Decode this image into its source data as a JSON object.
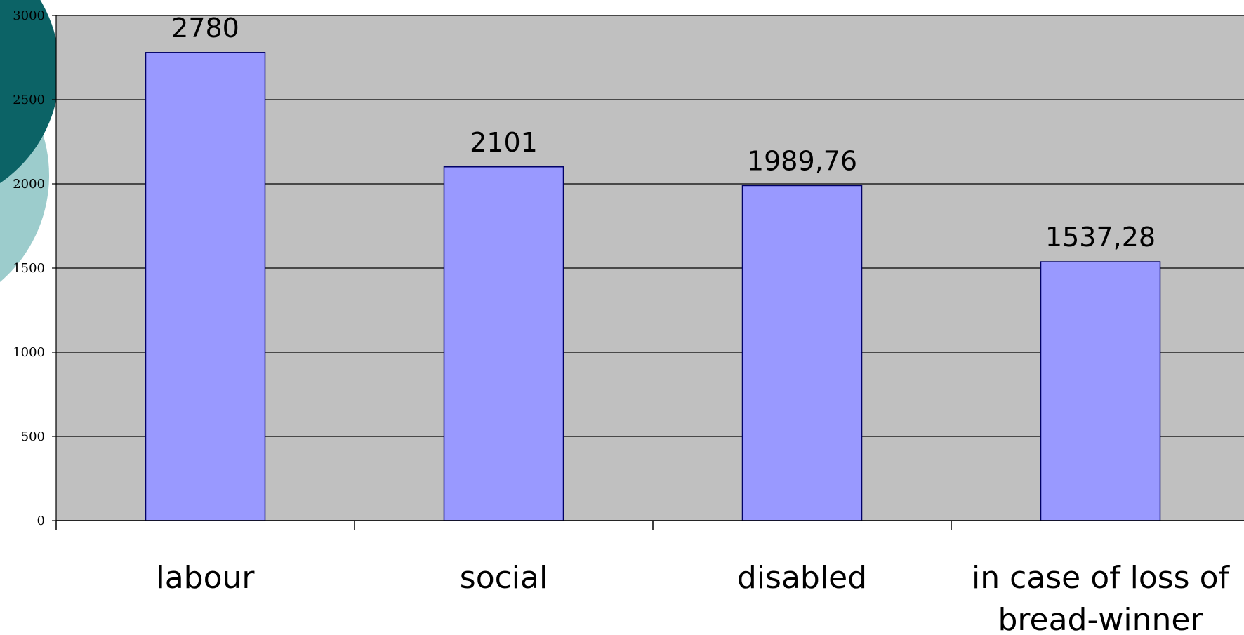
{
  "colors": {
    "plot_background": "#c0c0c0",
    "bar_fill": "#9999ff",
    "bar_stroke": "#000066",
    "gridline": "#000000",
    "decor_dark_teal": "#0c6366",
    "decor_light_teal": "#9ccccc"
  },
  "chart_data": {
    "type": "bar",
    "categories": [
      [
        "labour"
      ],
      [
        "social"
      ],
      [
        "disabled"
      ],
      [
        "in case of loss of",
        "bread-winner"
      ]
    ],
    "values": [
      2780,
      2101,
      1989.76,
      1537.28
    ],
    "data_labels": [
      "2780",
      "2101",
      "1989,76",
      "1537,28"
    ],
    "y_ticks": [
      "0",
      "500",
      "1000",
      "1500",
      "2000",
      "2500",
      "3000"
    ],
    "ylim": [
      0,
      3000
    ],
    "ytick_step": 500,
    "grid": true,
    "legend": "none"
  }
}
